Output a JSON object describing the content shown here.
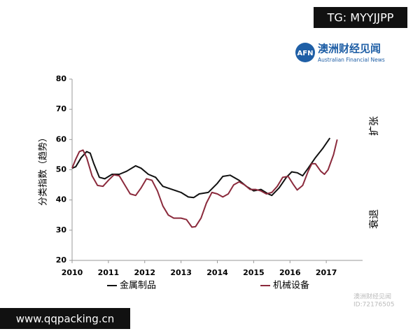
{
  "chart_data": {
    "type": "line",
    "y_label": "分类指数（趋势）",
    "right_labels": [
      "扩张",
      "衰退"
    ],
    "xlim": [
      2010,
      2018
    ],
    "xticks": [
      2010,
      2011,
      2012,
      2013,
      2014,
      2015,
      2016,
      2017
    ],
    "ylim": [
      20,
      80
    ],
    "yticks": [
      20,
      30,
      40,
      50,
      60,
      70,
      80
    ],
    "grid": false,
    "series": [
      {
        "name": "金属制品",
        "color": "#111111",
        "x": [
          2010.0,
          2010.1,
          2010.25,
          2010.4,
          2010.5,
          2010.6,
          2010.75,
          2010.9,
          2011.1,
          2011.3,
          2011.5,
          2011.75,
          2011.9,
          2012.1,
          2012.3,
          2012.5,
          2012.75,
          2013.0,
          2013.2,
          2013.35,
          2013.5,
          2013.75,
          2014.0,
          2014.15,
          2014.35,
          2014.6,
          2014.8,
          2015.0,
          2015.2,
          2015.4,
          2015.5,
          2015.7,
          2015.9,
          2016.05,
          2016.2,
          2016.35,
          2016.5,
          2016.7,
          2016.9,
          2017.1
        ],
        "values": [
          50.5,
          51,
          54,
          56,
          55.5,
          52,
          47.5,
          47,
          48.5,
          48.5,
          49.5,
          51.3,
          50.5,
          48.5,
          47.5,
          44.5,
          43.5,
          42.5,
          41,
          40.8,
          42,
          42.5,
          45.5,
          47.8,
          48.2,
          46.5,
          44.5,
          43,
          43.5,
          42,
          41.5,
          44,
          47.5,
          49.3,
          49,
          48,
          50.5,
          54,
          57,
          60.5
        ]
      },
      {
        "name": "机械设备",
        "color": "#8b2a3c",
        "x": [
          2010.0,
          2010.1,
          2010.2,
          2010.3,
          2010.4,
          2010.55,
          2010.7,
          2010.85,
          2011.0,
          2011.15,
          2011.3,
          2011.45,
          2011.6,
          2011.75,
          2011.9,
          2012.05,
          2012.2,
          2012.35,
          2012.5,
          2012.65,
          2012.8,
          2013.0,
          2013.15,
          2013.3,
          2013.4,
          2013.55,
          2013.7,
          2013.85,
          2014.0,
          2014.15,
          2014.3,
          2014.45,
          2014.6,
          2014.75,
          2014.9,
          2015.05,
          2015.2,
          2015.35,
          2015.5,
          2015.65,
          2015.8,
          2015.95,
          2016.1,
          2016.2,
          2016.35,
          2016.5,
          2016.6,
          2016.7,
          2016.85,
          2016.95,
          2017.05,
          2017.2,
          2017.3
        ],
        "values": [
          50.5,
          53.5,
          56,
          56.5,
          54,
          48,
          44.8,
          44.5,
          46.5,
          48.3,
          48,
          45,
          42,
          41.5,
          44,
          47,
          46.5,
          43,
          38,
          35,
          34,
          34,
          33.5,
          31,
          31.2,
          34,
          39,
          42.5,
          42,
          41,
          42,
          45,
          46,
          45,
          43.5,
          43.5,
          43,
          42,
          42.5,
          44.5,
          47.5,
          47.8,
          45,
          43.3,
          44.8,
          49.5,
          52,
          52,
          49.5,
          48.5,
          50,
          55,
          60
        ]
      }
    ]
  },
  "tag": "TG: MYYJJPP",
  "logo": {
    "mark": "AFN",
    "name": "澳洲财经见闻",
    "subtitle": "Australian Financial News"
  },
  "site": "www.qqpacking.cn",
  "watermark": {
    "name": "澳洲财经见闻",
    "id": "ID:72176505"
  }
}
